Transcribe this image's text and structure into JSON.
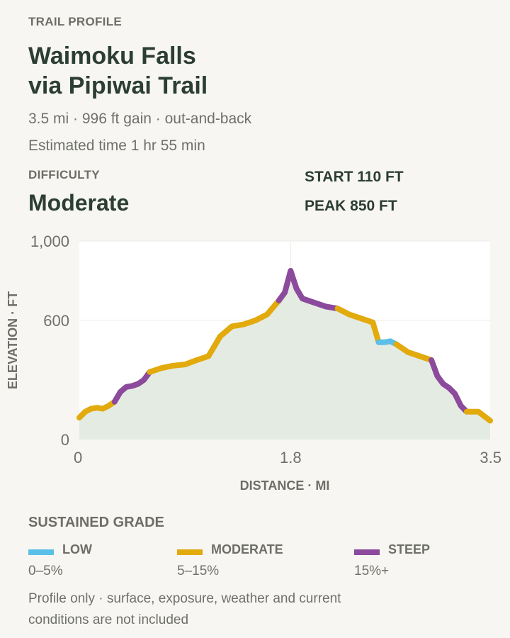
{
  "header": {
    "eyebrow": "TRAIL PROFILE",
    "title": "Waimoku Falls\nvia Pipiwai Trail",
    "summary": "3.5 mi · 996 ft gain · out-and-back",
    "estimated_time": "Estimated time 1 hr 55 min"
  },
  "difficulty": {
    "label": "DIFFICULTY",
    "value": "Moderate"
  },
  "stats": {
    "start": "START 110 FT",
    "peak": "PEAK 850 FT"
  },
  "colors": {
    "low": "#5bbfe8",
    "moderate": "#e2aa0c",
    "steep": "#8c4a9c",
    "area": "#e4ebe3",
    "plot_bg": "#ffffff",
    "grid": "#ebebe7"
  },
  "chart_data": {
    "type": "line",
    "title": "",
    "xlabel": "DISTANCE · MI",
    "ylabel": "ELEVATION · FT",
    "xlim": [
      0,
      3.5
    ],
    "ylim": [
      0,
      1000
    ],
    "x_ticks": [
      0,
      1.8,
      3.5
    ],
    "x_tick_labels": [
      "0",
      "1.8",
      "3.5"
    ],
    "y_ticks": [
      0,
      600,
      1000
    ],
    "y_tick_labels": [
      "0",
      "600",
      "1,000"
    ],
    "grid": true,
    "series": [
      {
        "name": "",
        "x": [
          0.0,
          0.05,
          0.1,
          0.15,
          0.2,
          0.25,
          0.3
        ],
        "y": [
          110,
          140,
          155,
          160,
          155,
          170,
          190
        ],
        "grade": "moderate"
      },
      {
        "x": [
          0.3,
          0.35,
          0.4,
          0.45,
          0.5,
          0.55,
          0.6
        ],
        "y": [
          190,
          240,
          265,
          270,
          280,
          300,
          340
        ],
        "grade": "steep"
      },
      {
        "x": [
          0.6,
          0.7,
          0.8,
          0.9,
          1.0,
          1.1,
          1.2,
          1.3,
          1.4,
          1.5,
          1.6,
          1.7
        ],
        "y": [
          340,
          360,
          372,
          378,
          400,
          420,
          520,
          570,
          580,
          600,
          630,
          700
        ],
        "grade": "moderate"
      },
      {
        "x": [
          1.7,
          1.75,
          1.8,
          1.85,
          1.9,
          2.0,
          2.1,
          2.2
        ],
        "y": [
          700,
          740,
          850,
          760,
          710,
          690,
          670,
          660
        ],
        "grade": "steep"
      },
      {
        "x": [
          2.2,
          2.3,
          2.4,
          2.5,
          2.55
        ],
        "y": [
          660,
          630,
          610,
          590,
          490
        ],
        "grade": "moderate"
      },
      {
        "x": [
          2.55,
          2.6,
          2.65,
          2.7
        ],
        "y": [
          490,
          490,
          495,
          480
        ],
        "grade": "low"
      },
      {
        "x": [
          2.7,
          2.8,
          2.9,
          3.0
        ],
        "y": [
          480,
          440,
          420,
          400
        ],
        "grade": "moderate"
      },
      {
        "x": [
          3.0,
          3.05,
          3.1,
          3.15,
          3.2,
          3.25,
          3.3
        ],
        "y": [
          400,
          320,
          280,
          260,
          230,
          170,
          140
        ],
        "grade": "steep"
      },
      {
        "x": [
          3.3,
          3.4,
          3.5
        ],
        "y": [
          140,
          140,
          95
        ],
        "grade": "moderate"
      }
    ]
  },
  "legend": {
    "title": "SUSTAINED GRADE",
    "items": [
      {
        "key": "low",
        "name": "LOW",
        "range": "0–5%"
      },
      {
        "key": "moderate",
        "name": "MODERATE",
        "range": "5–15%"
      },
      {
        "key": "steep",
        "name": "STEEP",
        "range": "15%+"
      }
    ]
  },
  "footnote": "Profile only · surface, exposure, weather and current conditions are not included"
}
